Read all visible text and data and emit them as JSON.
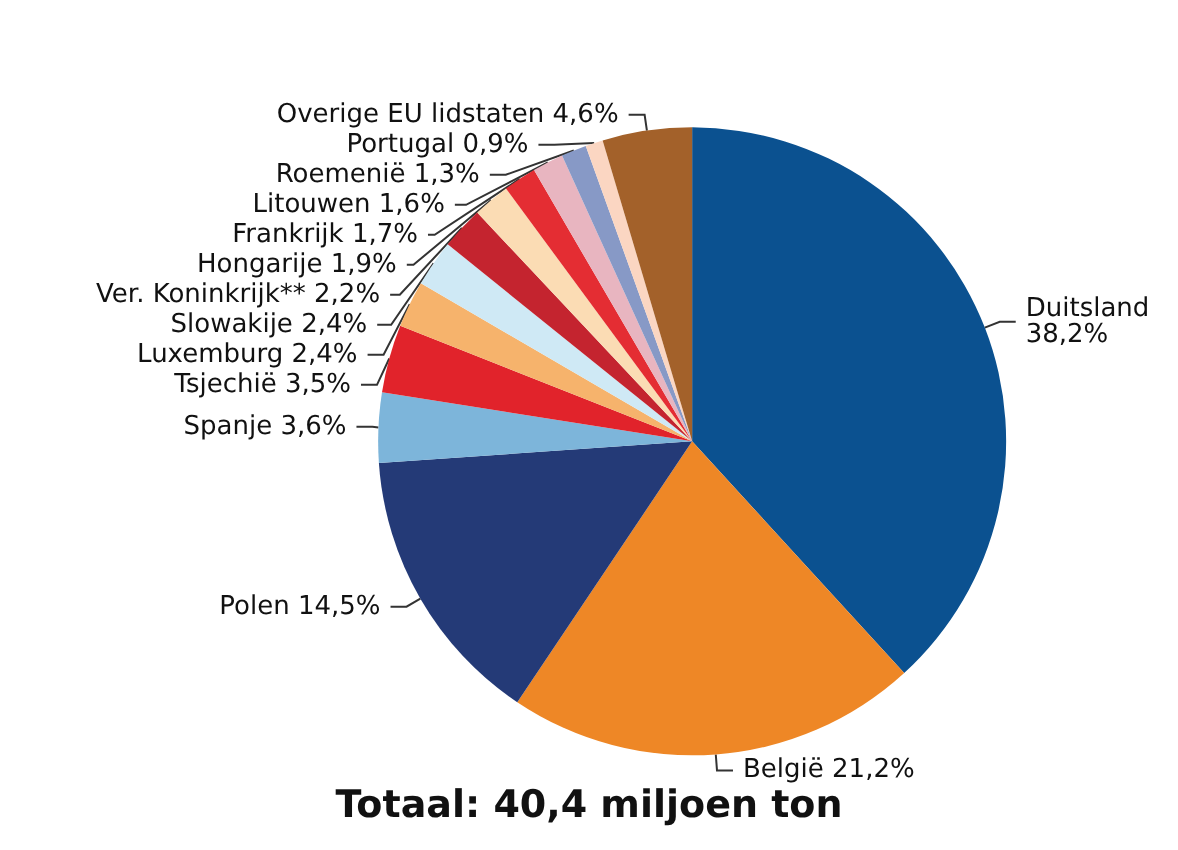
{
  "chart_data": {
    "type": "pie",
    "title": "Totaal: 40,4 miljoen ton",
    "categories": [
      "Duitsland",
      "België",
      "Polen",
      "Spanje",
      "Tsjechië",
      "Luxemburg",
      "Slowakije",
      "Ver. Koninkrijk**",
      "Hongarije",
      "Frankrijk",
      "Litouwen",
      "Roemenië",
      "Portugal",
      "Overige EU lidstaten"
    ],
    "values": [
      38.2,
      21.2,
      14.5,
      3.6,
      3.5,
      2.4,
      2.4,
      2.2,
      1.9,
      1.7,
      1.6,
      1.3,
      0.9,
      4.6
    ],
    "value_labels": [
      "38,2%",
      "21,2%",
      "14,5%",
      "3,6%",
      "3,5%",
      "2,4%",
      "2,4%",
      "2,2%",
      "1,9%",
      "1,7%",
      "1,6%",
      "1,3%",
      "0,9%",
      "4,6%"
    ],
    "colors": [
      "#0b5190",
      "#ee8726",
      "#243a77",
      "#7db5da",
      "#e1232b",
      "#f6b36c",
      "#cfe9f5",
      "#c4242f",
      "#fbdcb4",
      "#e42d33",
      "#e8b5c0",
      "#8799c6",
      "#fbd6c2",
      "#a3612a"
    ],
    "legend": false
  }
}
